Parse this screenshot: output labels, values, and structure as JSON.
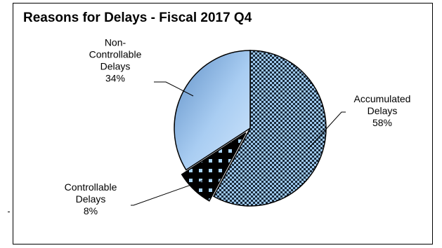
{
  "chart_data": {
    "type": "pie",
    "title": "Reasons for Delays - Fiscal 2017 Q4",
    "slices": [
      {
        "label_lines": [
          "Accumulated",
          "Delays",
          "58%"
        ],
        "value": 58,
        "fill": "checker",
        "colors": {
          "base": "#9ec9ee",
          "pattern": "#1a2a3a"
        }
      },
      {
        "label_lines": [
          "Controllable",
          "Delays",
          "8%"
        ],
        "value": 8,
        "fill": "dots",
        "colors": {
          "base": "#000000",
          "pattern": "#a8d4f6"
        }
      },
      {
        "label_lines": [
          "Non-",
          "Controllable",
          "Delays",
          "34%"
        ],
        "value": 34,
        "fill": "gradient",
        "colors": {
          "base": "#5f8fc6",
          "pattern": "#cfe5fb"
        }
      }
    ],
    "start_angle_deg": 0,
    "direction": "clockwise",
    "legend": "none",
    "leader_lines": true
  }
}
